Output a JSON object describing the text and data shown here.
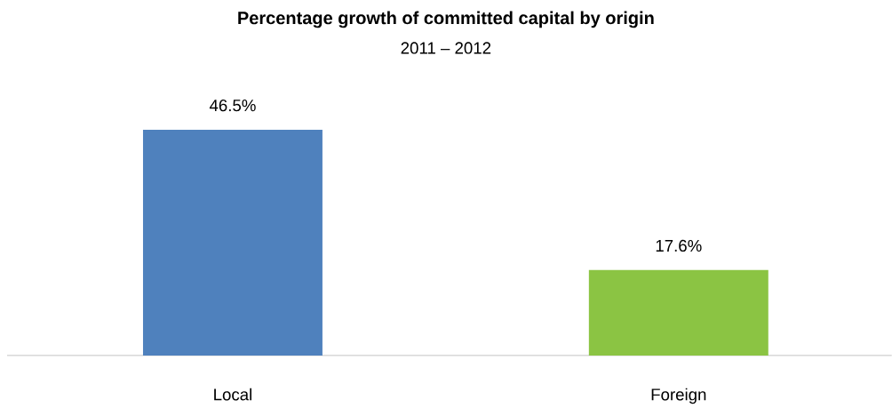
{
  "chart_data": {
    "type": "bar",
    "title": "Percentage growth of committed capital by origin",
    "subtitle": "2011 – 2012",
    "categories": [
      "Local",
      "Foreign"
    ],
    "values": [
      46.5,
      17.6
    ],
    "colors": [
      "#4f81bd",
      "#8bc443"
    ],
    "value_labels": [
      "46.5%",
      "17.6%"
    ]
  }
}
